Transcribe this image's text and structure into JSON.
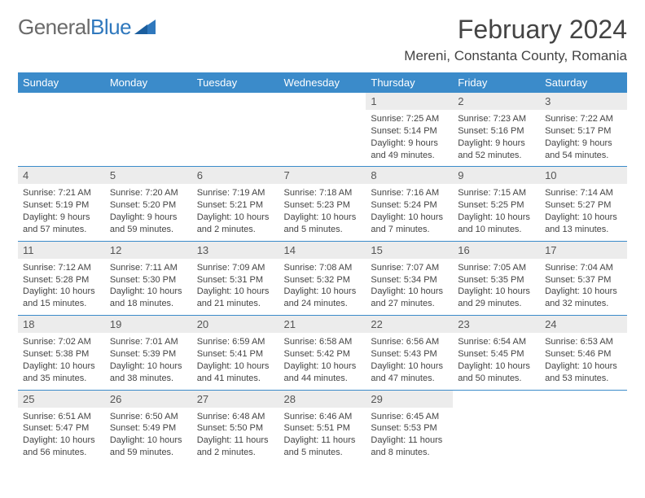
{
  "brand": {
    "part1": "General",
    "part2": "Blue",
    "color1": "#6a6a6a",
    "color2": "#2f78bd"
  },
  "title": "February 2024",
  "location": "Mereni, Constanta County, Romania",
  "header_bg": "#3b8bca",
  "daynum_bg": "#ececec",
  "dow": [
    "Sunday",
    "Monday",
    "Tuesday",
    "Wednesday",
    "Thursday",
    "Friday",
    "Saturday"
  ],
  "weeks": [
    [
      null,
      null,
      null,
      null,
      {
        "n": "1",
        "sr": "7:25 AM",
        "ss": "5:14 PM",
        "dl": "9 hours and 49 minutes."
      },
      {
        "n": "2",
        "sr": "7:23 AM",
        "ss": "5:16 PM",
        "dl": "9 hours and 52 minutes."
      },
      {
        "n": "3",
        "sr": "7:22 AM",
        "ss": "5:17 PM",
        "dl": "9 hours and 54 minutes."
      }
    ],
    [
      {
        "n": "4",
        "sr": "7:21 AM",
        "ss": "5:19 PM",
        "dl": "9 hours and 57 minutes."
      },
      {
        "n": "5",
        "sr": "7:20 AM",
        "ss": "5:20 PM",
        "dl": "9 hours and 59 minutes."
      },
      {
        "n": "6",
        "sr": "7:19 AM",
        "ss": "5:21 PM",
        "dl": "10 hours and 2 minutes."
      },
      {
        "n": "7",
        "sr": "7:18 AM",
        "ss": "5:23 PM",
        "dl": "10 hours and 5 minutes."
      },
      {
        "n": "8",
        "sr": "7:16 AM",
        "ss": "5:24 PM",
        "dl": "10 hours and 7 minutes."
      },
      {
        "n": "9",
        "sr": "7:15 AM",
        "ss": "5:25 PM",
        "dl": "10 hours and 10 minutes."
      },
      {
        "n": "10",
        "sr": "7:14 AM",
        "ss": "5:27 PM",
        "dl": "10 hours and 13 minutes."
      }
    ],
    [
      {
        "n": "11",
        "sr": "7:12 AM",
        "ss": "5:28 PM",
        "dl": "10 hours and 15 minutes."
      },
      {
        "n": "12",
        "sr": "7:11 AM",
        "ss": "5:30 PM",
        "dl": "10 hours and 18 minutes."
      },
      {
        "n": "13",
        "sr": "7:09 AM",
        "ss": "5:31 PM",
        "dl": "10 hours and 21 minutes."
      },
      {
        "n": "14",
        "sr": "7:08 AM",
        "ss": "5:32 PM",
        "dl": "10 hours and 24 minutes."
      },
      {
        "n": "15",
        "sr": "7:07 AM",
        "ss": "5:34 PM",
        "dl": "10 hours and 27 minutes."
      },
      {
        "n": "16",
        "sr": "7:05 AM",
        "ss": "5:35 PM",
        "dl": "10 hours and 29 minutes."
      },
      {
        "n": "17",
        "sr": "7:04 AM",
        "ss": "5:37 PM",
        "dl": "10 hours and 32 minutes."
      }
    ],
    [
      {
        "n": "18",
        "sr": "7:02 AM",
        "ss": "5:38 PM",
        "dl": "10 hours and 35 minutes."
      },
      {
        "n": "19",
        "sr": "7:01 AM",
        "ss": "5:39 PM",
        "dl": "10 hours and 38 minutes."
      },
      {
        "n": "20",
        "sr": "6:59 AM",
        "ss": "5:41 PM",
        "dl": "10 hours and 41 minutes."
      },
      {
        "n": "21",
        "sr": "6:58 AM",
        "ss": "5:42 PM",
        "dl": "10 hours and 44 minutes."
      },
      {
        "n": "22",
        "sr": "6:56 AM",
        "ss": "5:43 PM",
        "dl": "10 hours and 47 minutes."
      },
      {
        "n": "23",
        "sr": "6:54 AM",
        "ss": "5:45 PM",
        "dl": "10 hours and 50 minutes."
      },
      {
        "n": "24",
        "sr": "6:53 AM",
        "ss": "5:46 PM",
        "dl": "10 hours and 53 minutes."
      }
    ],
    [
      {
        "n": "25",
        "sr": "6:51 AM",
        "ss": "5:47 PM",
        "dl": "10 hours and 56 minutes."
      },
      {
        "n": "26",
        "sr": "6:50 AM",
        "ss": "5:49 PM",
        "dl": "10 hours and 59 minutes."
      },
      {
        "n": "27",
        "sr": "6:48 AM",
        "ss": "5:50 PM",
        "dl": "11 hours and 2 minutes."
      },
      {
        "n": "28",
        "sr": "6:46 AM",
        "ss": "5:51 PM",
        "dl": "11 hours and 5 minutes."
      },
      {
        "n": "29",
        "sr": "6:45 AM",
        "ss": "5:53 PM",
        "dl": "11 hours and 8 minutes."
      },
      null,
      null
    ]
  ],
  "labels": {
    "sunrise": "Sunrise: ",
    "sunset": "Sunset: ",
    "daylight": "Daylight: "
  }
}
